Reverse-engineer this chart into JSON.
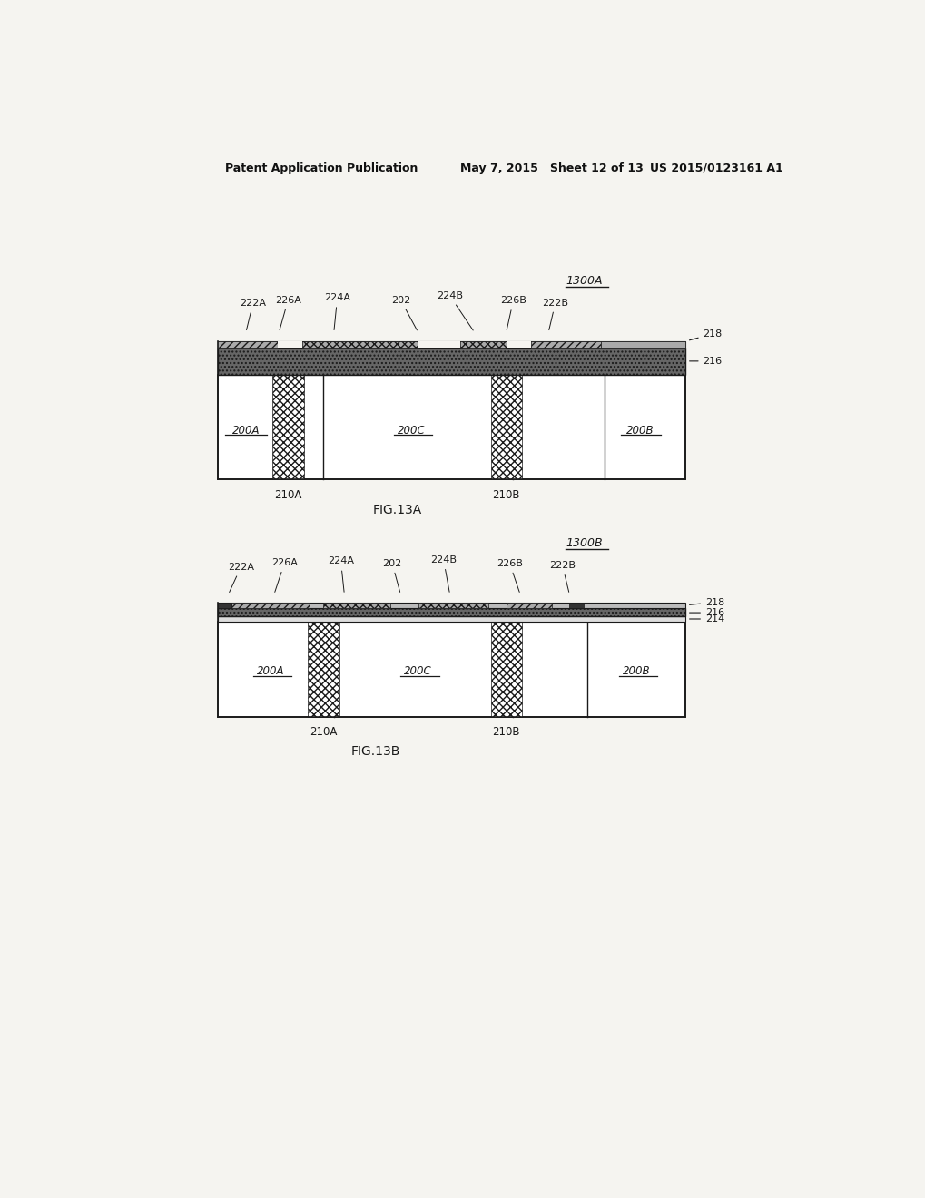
{
  "title_left": "Patent Application Publication",
  "title_mid": "May 7, 2015   Sheet 12 of 13",
  "title_right": "US 2015/0123161 A1",
  "bg_color": "#f5f4f0",
  "line_color": "#1a1a1a",
  "fig13a_label": "1300A",
  "fig13b_label": "1300B",
  "fig13a_caption": "FIG.13A",
  "fig13b_caption": "FIG.13B",
  "gray_dark": "#555555",
  "gray_med": "#999999",
  "gray_light": "#cccccc",
  "white": "#ffffff"
}
